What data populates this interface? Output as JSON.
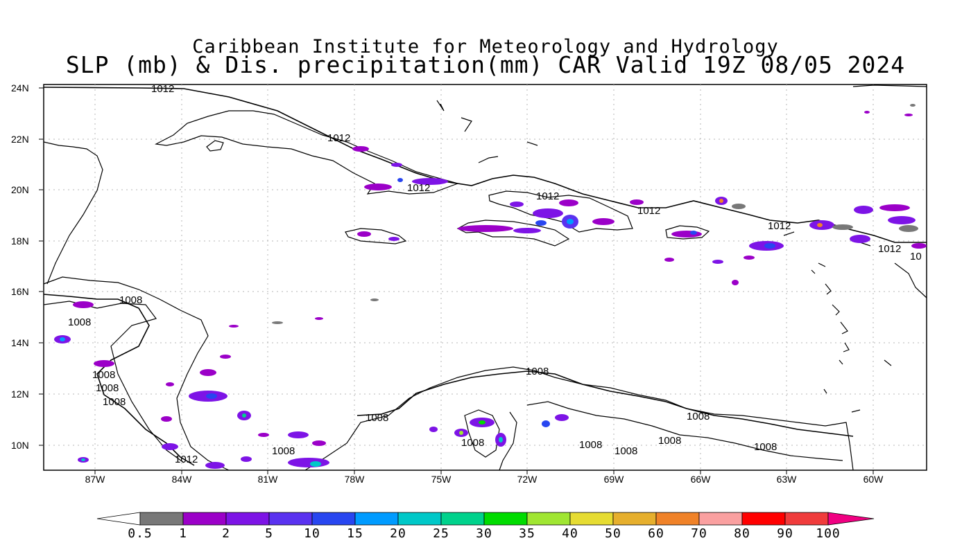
{
  "title": {
    "line1": "Caribbean Institute for Meteorology and Hydrology",
    "line2": "SLP (mb) & Dis. precipitation(mm) CAR Valid 19Z 08/05 2024"
  },
  "axes": {
    "lat_labels": [
      "24N",
      "22N",
      "20N",
      "18N",
      "16N",
      "14N",
      "12N",
      "10N"
    ],
    "lon_labels": [
      "87W",
      "84W",
      "81W",
      "78W",
      "75W",
      "72W",
      "69W",
      "66W",
      "63W",
      "60W"
    ]
  },
  "isobar_labels": [
    "1012",
    "1012",
    "1012",
    "1012",
    "1012",
    "1012",
    "1012",
    "10",
    "1008",
    "1008",
    "1008",
    "1008",
    "1008",
    "1012",
    "1008",
    "1008",
    "1008",
    "1008",
    "1008",
    "1008",
    "1008",
    "1008",
    "1008"
  ],
  "colorbar": {
    "labels": [
      "0.5",
      "1",
      "2",
      "5",
      "10",
      "15",
      "20",
      "25",
      "30",
      "35",
      "40",
      "50",
      "60",
      "70",
      "80",
      "90",
      "100"
    ],
    "colors": [
      "#787878",
      "#9b00c8",
      "#7d14e6",
      "#5a32f0",
      "#2846f0",
      "#009bff",
      "#00c8c8",
      "#00d28c",
      "#00dc00",
      "#a0e632",
      "#e6dc32",
      "#e6af2d",
      "#f08228",
      "#faa0a0",
      "#ff0000",
      "#f03c3c",
      "#f00082"
    ]
  },
  "colors": {
    "map_background": "#ffffff",
    "coastline": "#000000",
    "grid": "#b4b4b4"
  }
}
